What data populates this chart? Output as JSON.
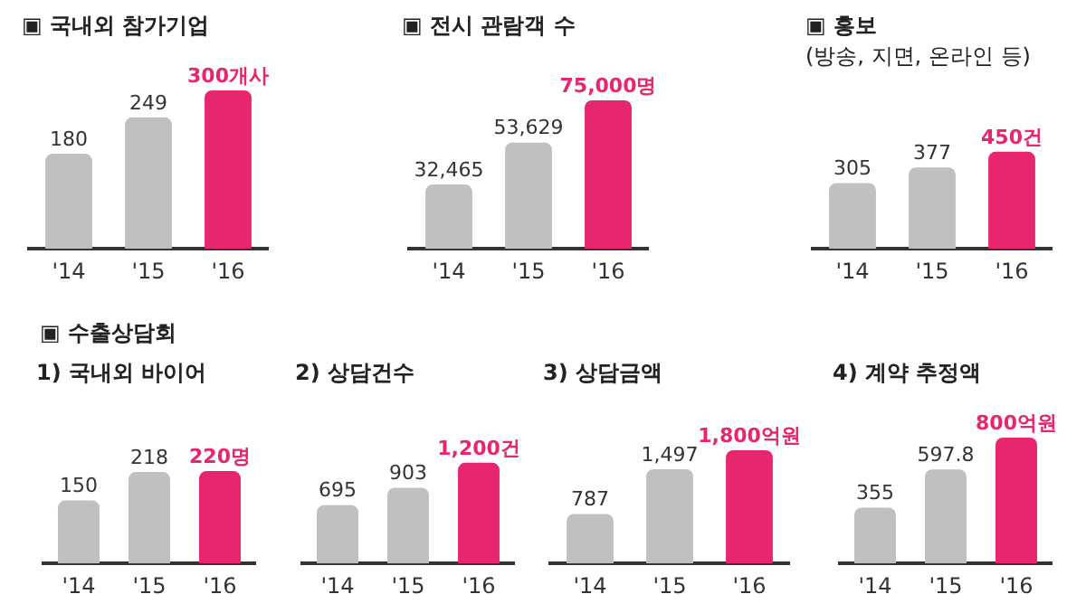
{
  "chart_data": [
    {
      "type": "bar",
      "title": "▣ 국내외 참가기업",
      "categories": [
        "'14",
        "'15",
        "'16"
      ],
      "values": [
        180,
        249,
        300
      ],
      "colors": [
        "#c0c0c0",
        "#c0c0c0",
        "#e8256f"
      ],
      "value_labels": [
        "180",
        "249",
        "300개사"
      ]
    },
    {
      "type": "bar",
      "title": "▣ 전시 관람객 수",
      "categories": [
        "'14",
        "'15",
        "'16"
      ],
      "values": [
        32465,
        53629,
        75000
      ],
      "colors": [
        "#c0c0c0",
        "#c0c0c0",
        "#e8256f"
      ],
      "value_labels": [
        "32,465",
        "53,629",
        "75,000명"
      ]
    },
    {
      "type": "bar",
      "title": "▣ 홍보",
      "subtitle": "(방송, 지면, 온라인 등)",
      "categories": [
        "'14",
        "'15",
        "'16"
      ],
      "values": [
        305,
        377,
        450
      ],
      "colors": [
        "#c0c0c0",
        "#c0c0c0",
        "#e8256f"
      ],
      "value_labels": [
        "305",
        "377",
        "450건"
      ]
    },
    {
      "type": "bar",
      "title": "1) 국내외 바이어",
      "annotations": [
        "▣ 수출상담회"
      ],
      "categories": [
        "'14",
        "'15",
        "'16"
      ],
      "values": [
        150,
        218,
        220
      ],
      "colors": [
        "#c0c0c0",
        "#c0c0c0",
        "#e8256f"
      ],
      "value_labels": [
        "150",
        "218",
        "220명"
      ]
    },
    {
      "type": "bar",
      "title": "2) 상담건수",
      "categories": [
        "'14",
        "'15",
        "'16"
      ],
      "values": [
        695,
        903,
        1200
      ],
      "colors": [
        "#c0c0c0",
        "#c0c0c0",
        "#e8256f"
      ],
      "value_labels": [
        "695",
        "903",
        "1,200건"
      ]
    },
    {
      "type": "bar",
      "title": "3) 상담금액",
      "categories": [
        "'14",
        "'15",
        "'16"
      ],
      "values": [
        787,
        1497,
        1800
      ],
      "colors": [
        "#c0c0c0",
        "#c0c0c0",
        "#e8256f"
      ],
      "value_labels": [
        "787",
        "1,497",
        "1,800억원"
      ]
    },
    {
      "type": "bar",
      "title": "4) 계약 추정액",
      "categories": [
        "'14",
        "'15",
        "'16"
      ],
      "values": [
        355,
        597.8,
        800
      ],
      "colors": [
        "#c0c0c0",
        "#c0c0c0",
        "#e8256f"
      ],
      "value_labels": [
        "355",
        "597.8",
        "800억원"
      ]
    }
  ]
}
